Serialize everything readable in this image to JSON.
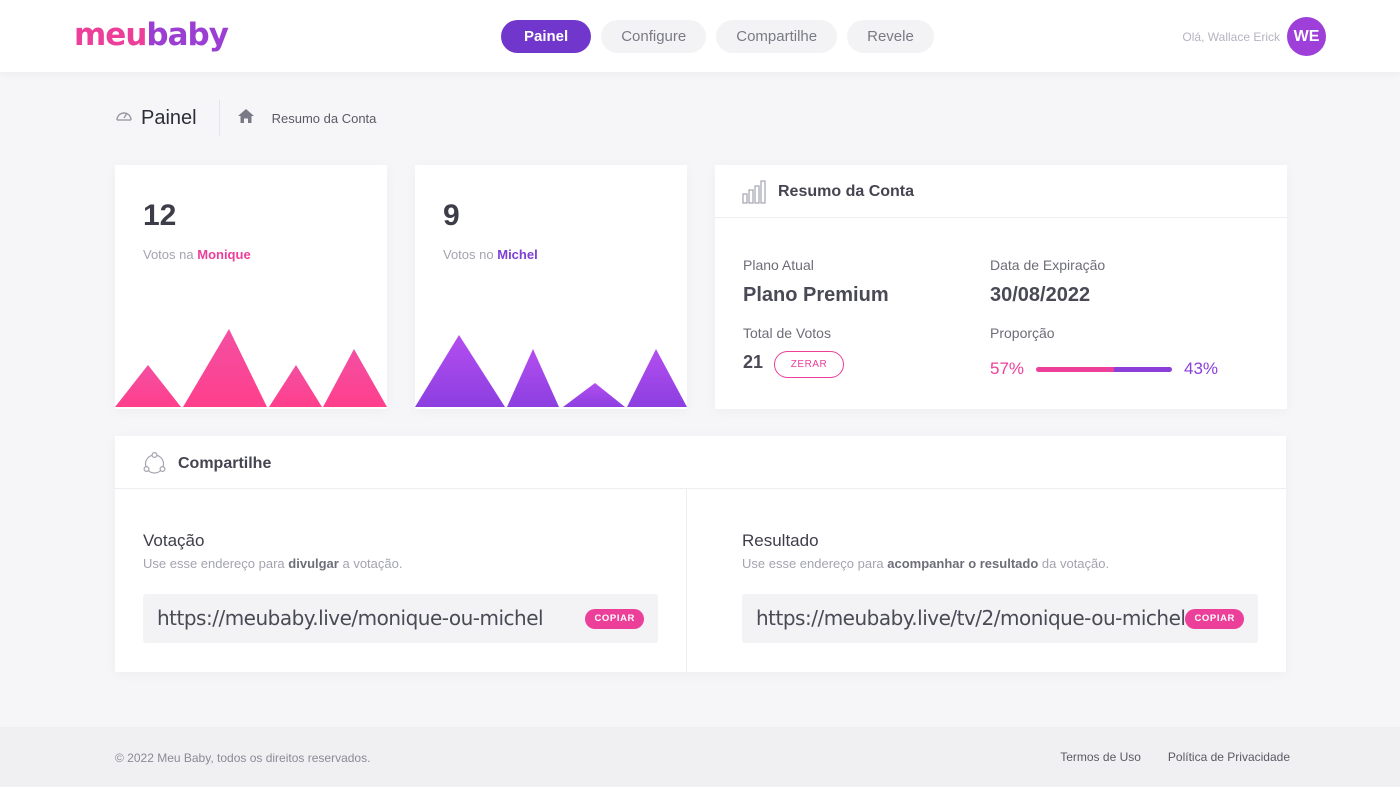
{
  "brand": {
    "logo_part1": "meu",
    "logo_part2": "baby"
  },
  "nav": {
    "tabs": [
      {
        "label": "Painel",
        "active": true
      },
      {
        "label": "Configure",
        "active": false
      },
      {
        "label": "Compartilhe",
        "active": false
      },
      {
        "label": "Revele",
        "active": false
      }
    ]
  },
  "user": {
    "greeting": "Olá, Wallace Erick",
    "initials": "WE"
  },
  "breadcrumb": {
    "title": "Painel",
    "current": "Resumo da Conta"
  },
  "votes": [
    {
      "count": "12",
      "prefix": "Votos na",
      "name": "Monique",
      "color": "#ec3f9a"
    },
    {
      "count": "9",
      "prefix": "Votos no",
      "name": "Michel",
      "color": "#8a3fd8"
    }
  ],
  "summary": {
    "title": "Resumo da Conta",
    "plan_label": "Plano Atual",
    "plan_value": "Plano Premium",
    "expiry_label": "Data de Expiração",
    "expiry_value": "30/08/2022",
    "total_label": "Total de Votos",
    "total_value": "21",
    "reset_label": "ZERAR",
    "ratio_label": "Proporção",
    "ratio_left": "57%",
    "ratio_right": "43%",
    "ratio_left_value": 0.57
  },
  "share": {
    "title": "Compartilhe",
    "voting": {
      "title": "Votação",
      "desc_prefix": "Use esse endereço para",
      "desc_bold": "divulgar",
      "desc_suffix": "a votação.",
      "url": "https://meubaby.live/monique-ou-michel",
      "copy_label": "COPIAR"
    },
    "result": {
      "title": "Resultado",
      "desc_prefix": "Use esse endereço para",
      "desc_bold": "acompanhar o resultado",
      "desc_suffix": "da votação.",
      "url": "https://meubaby.live/tv/2/monique-ou-michel",
      "copy_label": "COPIAR"
    }
  },
  "footer": {
    "copyright": "© 2022 Meu Baby, todos os direitos reservados.",
    "links": [
      "Termos de Uso",
      "Política de Privacidade"
    ]
  },
  "colors": {
    "pink": "#ec3f9a",
    "purple": "#8a3fd8",
    "nav_active": "#7137cc"
  }
}
